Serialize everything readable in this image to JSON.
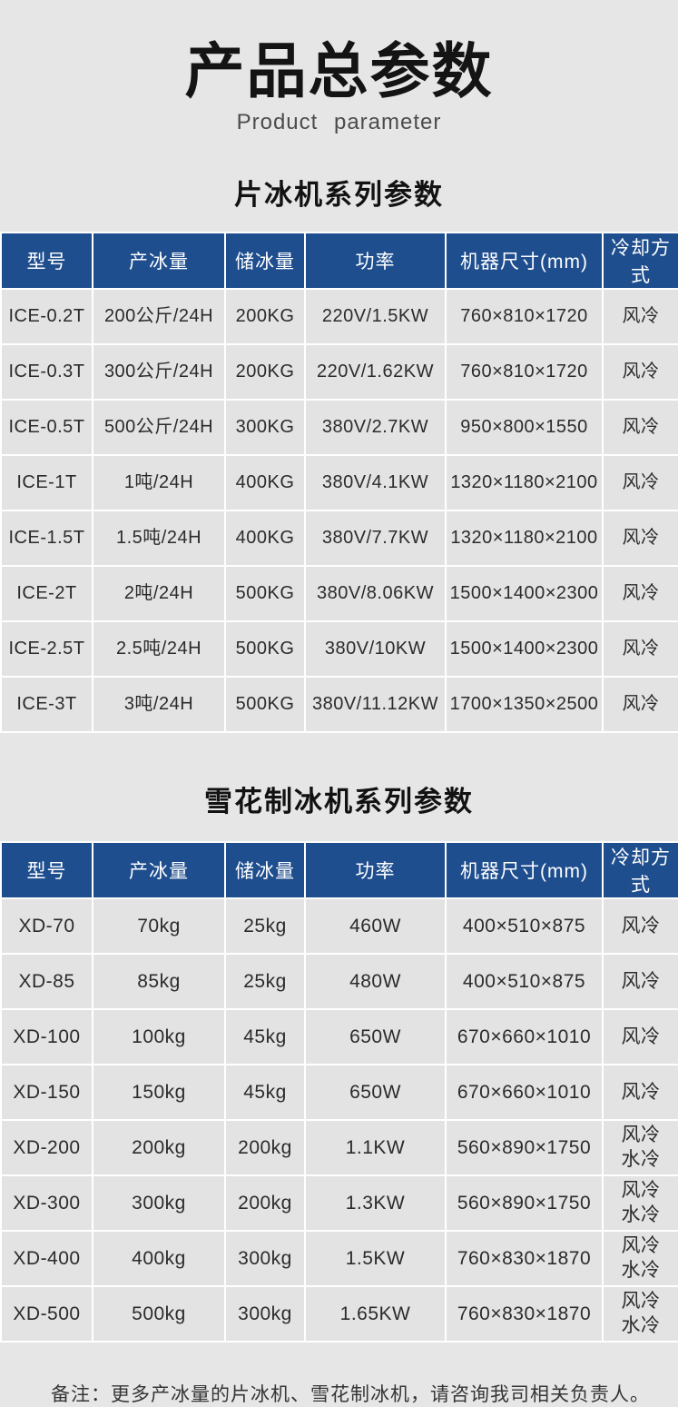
{
  "page": {
    "title": "产品总参数",
    "subtitle": "Product  parameter",
    "note": "备注：更多产冰量的片冰机、雪花制冰机，请咨询我司相关负责人。"
  },
  "colors": {
    "header_bg": "#1f4e8f",
    "header_text": "#ffffff",
    "page_bg": "#e6e6e6",
    "cell_bg": "#e3e3e3",
    "grid": "#ffffff"
  },
  "tables": [
    {
      "heading": "片冰机系列参数",
      "columns": [
        "型号",
        "产冰量",
        "储冰量",
        "功率",
        "机器尺寸(mm)",
        "冷却方式"
      ],
      "rows": [
        [
          "ICE-0.2T",
          "200公斤/24H",
          "200KG",
          "220V/1.5KW",
          "760×810×1720",
          "风冷"
        ],
        [
          "ICE-0.3T",
          "300公斤/24H",
          "200KG",
          "220V/1.62KW",
          "760×810×1720",
          "风冷"
        ],
        [
          "ICE-0.5T",
          "500公斤/24H",
          "300KG",
          "380V/2.7KW",
          "950×800×1550",
          "风冷"
        ],
        [
          "ICE-1T",
          "1吨/24H",
          "400KG",
          "380V/4.1KW",
          "1320×1180×2100",
          "风冷"
        ],
        [
          "ICE-1.5T",
          "1.5吨/24H",
          "400KG",
          "380V/7.7KW",
          "1320×1180×2100",
          "风冷"
        ],
        [
          "ICE-2T",
          "2吨/24H",
          "500KG",
          "380V/8.06KW",
          "1500×1400×2300",
          "风冷"
        ],
        [
          "ICE-2.5T",
          "2.5吨/24H",
          "500KG",
          "380V/10KW",
          "1500×1400×2300",
          "风冷"
        ],
        [
          "ICE-3T",
          "3吨/24H",
          "500KG",
          "380V/11.12KW",
          "1700×1350×2500",
          "风冷"
        ]
      ]
    },
    {
      "heading": "雪花制冰机系列参数",
      "columns": [
        "型号",
        "产冰量",
        "储冰量",
        "功率",
        "机器尺寸(mm)",
        "冷却方式"
      ],
      "rows": [
        [
          "XD-70",
          "70kg",
          "25kg",
          "460W",
          "400×510×875",
          "风冷"
        ],
        [
          "XD-85",
          "85kg",
          "25kg",
          "480W",
          "400×510×875",
          "风冷"
        ],
        [
          "XD-100",
          "100kg",
          "45kg",
          "650W",
          "670×660×1010",
          "风冷"
        ],
        [
          "XD-150",
          "150kg",
          "45kg",
          "650W",
          "670×660×1010",
          "风冷"
        ],
        [
          "XD-200",
          "200kg",
          "200kg",
          "1.1KW",
          "560×890×1750",
          "风冷\n水冷"
        ],
        [
          "XD-300",
          "300kg",
          "200kg",
          "1.3KW",
          "560×890×1750",
          "风冷\n水冷"
        ],
        [
          "XD-400",
          "400kg",
          "300kg",
          "1.5KW",
          "760×830×1870",
          "风冷\n水冷"
        ],
        [
          "XD-500",
          "500kg",
          "300kg",
          "1.65KW",
          "760×830×1870",
          "风冷\n水冷"
        ]
      ]
    }
  ]
}
